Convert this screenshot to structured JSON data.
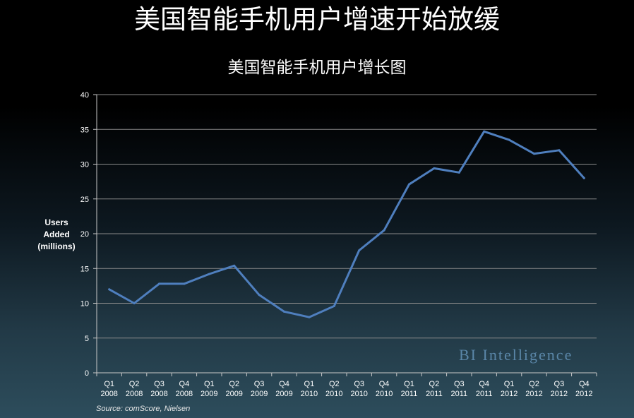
{
  "header": {
    "title": "美国智能手机用户增速开始放缓"
  },
  "watermark": "BI Intelligence",
  "source": "Source: comScore, Nielsen",
  "colors": {
    "line": "#4f7fbe",
    "grid": "#8a8a8a",
    "axis_text": "#ffffff",
    "watermark": "#5a86a8"
  },
  "chart_data": {
    "type": "line",
    "title": "美国智能手机用户增长图",
    "xlabel": "",
    "ylabel": "Users\nAdded\n(millions)",
    "ylim": [
      0,
      40
    ],
    "yticks": [
      0,
      5,
      10,
      15,
      20,
      25,
      30,
      35,
      40
    ],
    "grid": true,
    "legend": "none",
    "categories": [
      "Q1 2008",
      "Q2 2008",
      "Q3 2008",
      "Q4 2008",
      "Q1 2009",
      "Q2 2009",
      "Q3 2009",
      "Q4 2009",
      "Q1 2010",
      "Q2 2010",
      "Q3 2010",
      "Q4 2010",
      "Q1 2011",
      "Q2 2011",
      "Q3 2011",
      "Q4 2011",
      "Q1 2012",
      "Q2 2012",
      "Q3 2012",
      "Q4 2012"
    ],
    "series": [
      {
        "values": [
          12.0,
          10.0,
          12.8,
          12.8,
          14.2,
          15.4,
          11.2,
          8.8,
          8.0,
          9.6,
          17.6,
          20.5,
          27.1,
          29.4,
          28.8,
          34.7,
          33.5,
          31.5,
          32.0,
          28.0
        ]
      }
    ]
  }
}
